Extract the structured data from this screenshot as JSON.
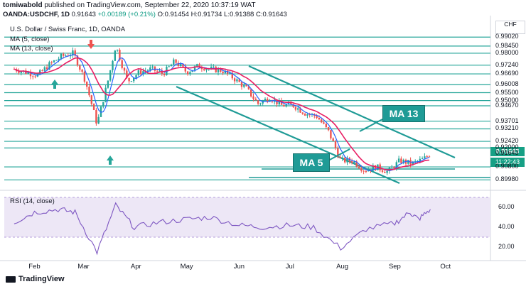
{
  "header": {
    "line1_user": "tomiwabold",
    "line1_rest": "published on TradingView.com, September 22, 2020 10:37:19 WAT",
    "symbol": "OANDA:USDCHF, 1D",
    "open_lbl": "0.91643",
    "change": "+0.00189 (+0.21%)",
    "ohlc": "O:0.91454 H:0.91734 L:0.91388 C:0.91643"
  },
  "chart_title": "U.S. Dollar / Swiss Franc, 1D, OANDA",
  "ma5_label": "MA (5, close)",
  "ma13_label": "MA (13, close)",
  "rsi_label": "RSI (14, close)",
  "currency_box": "CHF",
  "price_tag": "0.91643",
  "time_tag": "11:22:43",
  "annotations": {
    "ma13": "MA 13",
    "ma5": "MA 5"
  },
  "footer": "TradingView",
  "colors": {
    "candle_up": "#26a69a",
    "candle_down": "#ef5350",
    "ma5": "#2962ff",
    "ma13": "#e91e63",
    "hline": "#26a69a",
    "channel": "#1f9b96",
    "rsi": "#7e57c2",
    "rsi_band": "#ede7f6"
  },
  "chart_data": [
    {
      "type": "candlestick",
      "title": "U.S. Dollar / Swiss Franc, 1D, OANDA",
      "y_ticks": [
        "0.99020",
        "0.98450",
        "0.98000",
        "0.97240",
        "0.96690",
        "0.96008",
        "0.95500",
        "0.95000",
        "0.94670",
        "0.93701",
        "0.93210",
        "0.92420",
        "0.92000",
        "0.91643",
        "0.90800",
        "0.89980"
      ],
      "x_ticks": [
        "Feb",
        "Mar",
        "Apr",
        "May",
        "Jun",
        "Jul",
        "Aug",
        "Sep",
        "Oct"
      ],
      "ylim": [
        0.895,
        0.993
      ],
      "horizontal_levels": [
        0.9902,
        0.9845,
        0.98,
        0.9724,
        0.9669,
        0.96008,
        0.955,
        0.95,
        0.9467,
        0.93701,
        0.9321,
        0.9242,
        0.92,
        0.908,
        0.8998
      ],
      "approx_close_path": [
        {
          "x": "Jan 20",
          "y": 0.97
        },
        {
          "x": "Jan 27",
          "y": 0.968
        },
        {
          "x": "Feb 3",
          "y": 0.966
        },
        {
          "x": "Feb 10",
          "y": 0.973
        },
        {
          "x": "Feb 17",
          "y": 0.978
        },
        {
          "x": "Feb 24",
          "y": 0.98
        },
        {
          "x": "Mar 2",
          "y": 0.963
        },
        {
          "x": "Mar 9",
          "y": 0.935
        },
        {
          "x": "Mar 16",
          "y": 0.965
        },
        {
          "x": "Mar 20",
          "y": 0.985
        },
        {
          "x": "Mar 27",
          "y": 0.962
        },
        {
          "x": "Apr 3",
          "y": 0.968
        },
        {
          "x": "Apr 10",
          "y": 0.97
        },
        {
          "x": "Apr 17",
          "y": 0.967
        },
        {
          "x": "Apr 24",
          "y": 0.975
        },
        {
          "x": "May 1",
          "y": 0.968
        },
        {
          "x": "May 8",
          "y": 0.972
        },
        {
          "x": "May 15",
          "y": 0.97
        },
        {
          "x": "May 22",
          "y": 0.969
        },
        {
          "x": "May 29",
          "y": 0.964
        },
        {
          "x": "Jun 5",
          "y": 0.958
        },
        {
          "x": "Jun 12",
          "y": 0.948
        },
        {
          "x": "Jun 19",
          "y": 0.952
        },
        {
          "x": "Jun 26",
          "y": 0.947
        },
        {
          "x": "Jul 3",
          "y": 0.947
        },
        {
          "x": "Jul 10",
          "y": 0.942
        },
        {
          "x": "Jul 17",
          "y": 0.94
        },
        {
          "x": "Jul 24",
          "y": 0.93
        },
        {
          "x": "Jul 31",
          "y": 0.912
        },
        {
          "x": "Aug 7",
          "y": 0.912
        },
        {
          "x": "Aug 14",
          "y": 0.906
        },
        {
          "x": "Aug 21",
          "y": 0.908
        },
        {
          "x": "Aug 28",
          "y": 0.905
        },
        {
          "x": "Sep 4",
          "y": 0.912
        },
        {
          "x": "Sep 11",
          "y": 0.91
        },
        {
          "x": "Sep 18",
          "y": 0.913
        },
        {
          "x": "Sep 22",
          "y": 0.91643
        }
      ]
    },
    {
      "type": "line",
      "title": "RSI (14, close)",
      "y_ticks": [
        "60.00",
        "40.00",
        "20.00"
      ],
      "ylim": [
        10,
        70
      ],
      "bands": [
        30,
        70
      ],
      "approx_values": [
        {
          "x": "Jan 20",
          "y": 45
        },
        {
          "x": "Feb 1",
          "y": 55
        },
        {
          "x": "Feb 15",
          "y": 58
        },
        {
          "x": "Feb 25",
          "y": 55
        },
        {
          "x": "Mar 9",
          "y": 15
        },
        {
          "x": "Mar 20",
          "y": 62
        },
        {
          "x": "Mar 31",
          "y": 40
        },
        {
          "x": "Apr 15",
          "y": 45
        },
        {
          "x": "May 1",
          "y": 48
        },
        {
          "x": "May 15",
          "y": 50
        },
        {
          "x": "Jun 1",
          "y": 42
        },
        {
          "x": "Jun 15",
          "y": 40
        },
        {
          "x": "Jul 1",
          "y": 42
        },
        {
          "x": "Jul 15",
          "y": 40
        },
        {
          "x": "Jul 31",
          "y": 19
        },
        {
          "x": "Aug 15",
          "y": 38
        },
        {
          "x": "Sep 1",
          "y": 44
        },
        {
          "x": "Sep 10",
          "y": 55
        },
        {
          "x": "Sep 15",
          "y": 48
        },
        {
          "x": "Sep 22",
          "y": 58
        }
      ]
    }
  ]
}
